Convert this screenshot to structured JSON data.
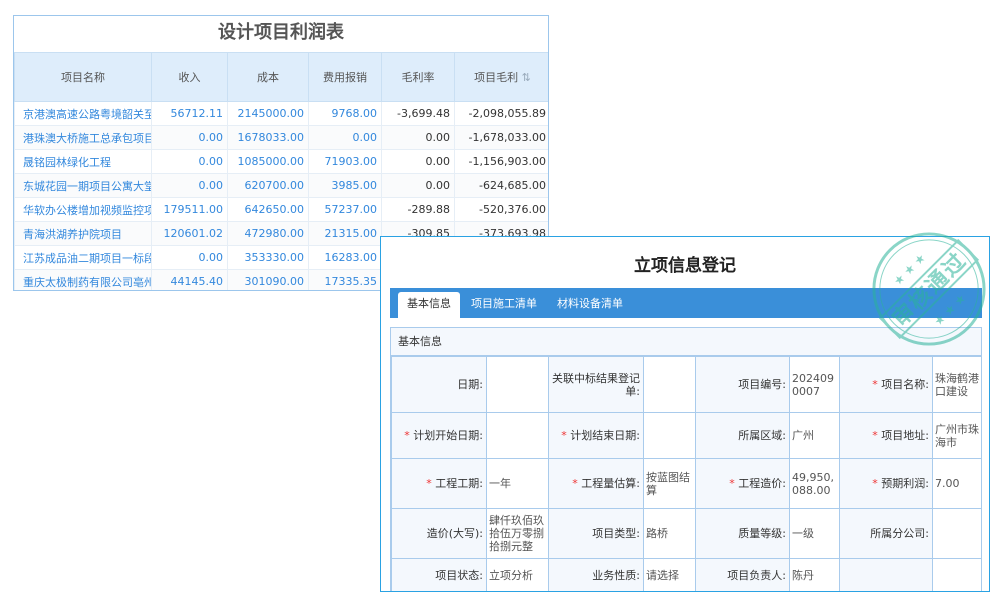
{
  "profit_table": {
    "title": "设计项目利润表",
    "columns": [
      "项目名称",
      "收入",
      "成本",
      "费用报销",
      "毛利率",
      "项目毛利"
    ],
    "sort_icon": "sort-icon",
    "rows": [
      [
        "京港澳高速公路粤境韶关至",
        "56712.11",
        "2145000.00",
        "9768.00",
        "-3,699.48",
        "-2,098,055.89"
      ],
      [
        "港珠澳大桥施工总承包项目",
        "0.00",
        "1678033.00",
        "0.00",
        "0.00",
        "-1,678,033.00"
      ],
      [
        "晟铭园林绿化工程",
        "0.00",
        "1085000.00",
        "71903.00",
        "0.00",
        "-1,156,903.00"
      ],
      [
        "东城花园一期项目公寓大堂",
        "0.00",
        "620700.00",
        "3985.00",
        "0.00",
        "-624,685.00"
      ],
      [
        "华软办公楼增加视频监控项",
        "179511.00",
        "642650.00",
        "57237.00",
        "-289.88",
        "-520,376.00"
      ],
      [
        "青海洪湖养护院项目",
        "120601.02",
        "472980.00",
        "21315.00",
        "-309.85",
        "-373,693.98"
      ],
      [
        "江苏成品油二期项目一标段",
        "0.00",
        "353330.00",
        "16283.00",
        "",
        ""
      ],
      [
        "重庆太极制药有限公司亳州",
        "44145.40",
        "301090.00",
        "17335.35",
        "",
        ""
      ]
    ]
  },
  "form": {
    "title": "立项信息登记",
    "tabs": [
      "基本信息",
      "项目施工清单",
      "材料设备清单"
    ],
    "section_title": "基本信息",
    "stamp_text": "审核通过",
    "rows": [
      [
        {
          "label": "日期:",
          "value": ""
        },
        {
          "label": "关联中标结果登记单:",
          "value": ""
        },
        {
          "label": "项目编号:",
          "value": "2024090007"
        },
        {
          "label": "项目名称:",
          "value": "珠海鹤港口建设",
          "req": true
        }
      ],
      [
        {
          "label": "计划开始日期:",
          "value": "",
          "req": true
        },
        {
          "label": "计划结束日期:",
          "value": "",
          "req": true
        },
        {
          "label": "所属区域:",
          "value": "广州"
        },
        {
          "label": "项目地址:",
          "value": "广州市珠海市",
          "req": true
        }
      ],
      [
        {
          "label": "工程工期:",
          "value": "一年",
          "req": true
        },
        {
          "label": "工程量估算:",
          "value": "按蓝图结算",
          "req": true
        },
        {
          "label": "工程造价:",
          "value": "49,950,088.00",
          "req": true
        },
        {
          "label": "预期利润:",
          "value": "7.00",
          "req": true
        }
      ],
      [
        {
          "label": "造价(大写):",
          "value": "肆仟玖佰玖拾伍万零捌拾捌元整"
        },
        {
          "label": "项目类型:",
          "value": "路桥"
        },
        {
          "label": "质量等级:",
          "value": "一级"
        },
        {
          "label": "所属分公司:",
          "value": ""
        }
      ],
      [
        {
          "label": "项目状态:",
          "value": "立项分析"
        },
        {
          "label": "业务性质:",
          "value": "请选择"
        },
        {
          "label": "项目负责人:",
          "value": "陈丹"
        },
        {
          "label": "",
          "value": ""
        }
      ]
    ]
  }
}
